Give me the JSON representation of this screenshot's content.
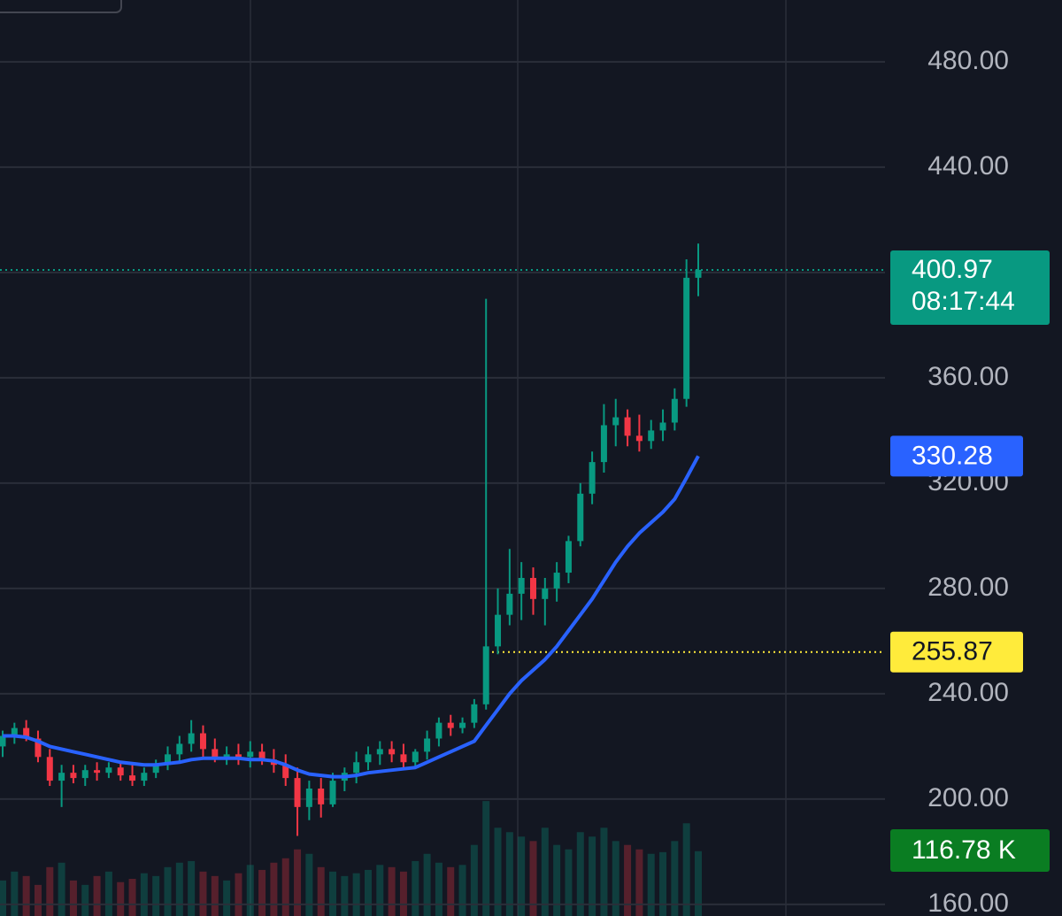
{
  "chart_data": {
    "type": "candlestick",
    "ylim": [
      155.6,
      503.5
    ],
    "yticks": [
      {
        "value": 160,
        "label": "160.00"
      },
      {
        "value": 200,
        "label": "200.00"
      },
      {
        "value": 240,
        "label": "240.00"
      },
      {
        "value": 280,
        "label": "280.00"
      },
      {
        "value": 320,
        "label": "320.00"
      },
      {
        "value": 360,
        "label": "360.00"
      },
      {
        "value": 400,
        "label": "400.00"
      },
      {
        "value": 440,
        "label": "440.00"
      },
      {
        "value": 480,
        "label": "480.00"
      }
    ],
    "grid": true,
    "up_color": "#089981",
    "down_color": "#f23645",
    "open": [
      220,
      224,
      227,
      223,
      216,
      207,
      210,
      208,
      211,
      210,
      212,
      209,
      207,
      210,
      213,
      217,
      221,
      225,
      219,
      216,
      217,
      216,
      218,
      215,
      213,
      208,
      197,
      204,
      198,
      207,
      210,
      214,
      217,
      219,
      217,
      214,
      218,
      223,
      229,
      227,
      229,
      236,
      258,
      270,
      278,
      284,
      276,
      280,
      286,
      298,
      316,
      328,
      342,
      345,
      338,
      336,
      340,
      343,
      352,
      398
    ],
    "high": [
      226,
      229,
      230,
      226,
      219,
      213,
      213,
      213,
      214,
      214,
      214,
      213,
      212,
      215,
      220,
      224,
      230,
      228,
      223,
      220,
      221,
      222,
      221,
      219,
      217,
      212,
      207,
      208,
      210,
      212,
      218,
      220,
      222,
      222,
      221,
      219,
      226,
      231,
      232,
      231,
      238,
      390,
      280,
      295,
      290,
      288,
      284,
      290,
      300,
      320,
      332,
      350,
      352,
      348,
      346,
      344,
      348,
      356,
      405,
      411
    ],
    "low": [
      216,
      221,
      222,
      214,
      205,
      197,
      206,
      205,
      207,
      208,
      207,
      205,
      205,
      208,
      211,
      214,
      218,
      216,
      214,
      213,
      213,
      212,
      213,
      210,
      205,
      186,
      192,
      193,
      197,
      203,
      206,
      211,
      213,
      214,
      211,
      212,
      215,
      220,
      224,
      225,
      227,
      234,
      255,
      266,
      268,
      270,
      266,
      275,
      282,
      296,
      312,
      324,
      334,
      334,
      332,
      333,
      336,
      340,
      349,
      391
    ],
    "close": [
      224,
      227,
      223,
      216,
      207,
      210,
      208,
      211,
      210,
      212,
      209,
      207,
      210,
      213,
      217,
      221,
      225,
      219,
      216,
      217,
      216,
      218,
      215,
      213,
      208,
      197,
      204,
      198,
      207,
      210,
      214,
      217,
      219,
      217,
      214,
      218,
      223,
      229,
      227,
      229,
      236,
      258,
      270,
      278,
      284,
      276,
      280,
      286,
      298,
      316,
      328,
      342,
      345,
      338,
      336,
      340,
      343,
      352,
      398,
      400.97
    ],
    "ma": {
      "color": "#2962ff",
      "values": [
        224,
        224,
        223.5,
        222,
        220,
        219,
        218,
        217,
        216,
        215,
        214,
        213.5,
        213,
        213,
        213.5,
        214,
        215,
        215.5,
        215.5,
        215.5,
        215.5,
        215,
        215,
        214.5,
        213,
        211,
        209.5,
        209,
        208.5,
        208.5,
        209,
        210,
        210.5,
        211,
        211.5,
        212,
        214,
        216,
        218,
        220,
        222,
        228,
        234,
        240,
        245,
        249,
        253,
        258,
        264,
        270,
        276,
        283,
        290,
        296,
        301,
        305,
        309,
        314,
        322,
        330.28
      ]
    },
    "countdown": "08:17:44",
    "price_line": {
      "value": 255.87,
      "color": "#ffeb3b"
    },
    "y2lim": [
      0,
      1650000
    ],
    "volume": {
      "values": [
        64000,
        80000,
        72000,
        56000,
        88000,
        96000,
        64000,
        56000,
        72000,
        80000,
        61000,
        67000,
        77000,
        72000,
        88000,
        96000,
        99000,
        80000,
        72000,
        64000,
        77000,
        92000,
        83000,
        96000,
        104000,
        120000,
        112000,
        88000,
        80000,
        72000,
        77000,
        83000,
        92000,
        88000,
        80000,
        99000,
        112000,
        96000,
        88000,
        92000,
        128000,
        207000,
        159000,
        151000,
        143000,
        135000,
        159000,
        128000,
        120000,
        151000,
        143000,
        159000,
        135000,
        128000,
        120000,
        112000,
        115000,
        135000,
        167000,
        116780
      ],
      "value_labels": [
        null,
        null,
        null,
        null,
        null,
        null,
        null,
        null,
        null,
        null,
        null,
        null,
        null,
        null,
        null,
        null,
        null,
        null,
        null,
        null,
        null,
        null,
        null,
        null,
        null,
        null,
        null,
        null,
        null,
        null,
        null,
        null,
        null,
        null,
        null,
        null,
        null,
        null,
        null,
        null,
        null,
        null,
        null,
        null,
        null,
        null,
        null,
        null,
        null,
        null,
        null,
        null,
        null,
        null,
        null,
        null,
        null,
        null,
        null,
        "116.78 K"
      ]
    }
  }
}
